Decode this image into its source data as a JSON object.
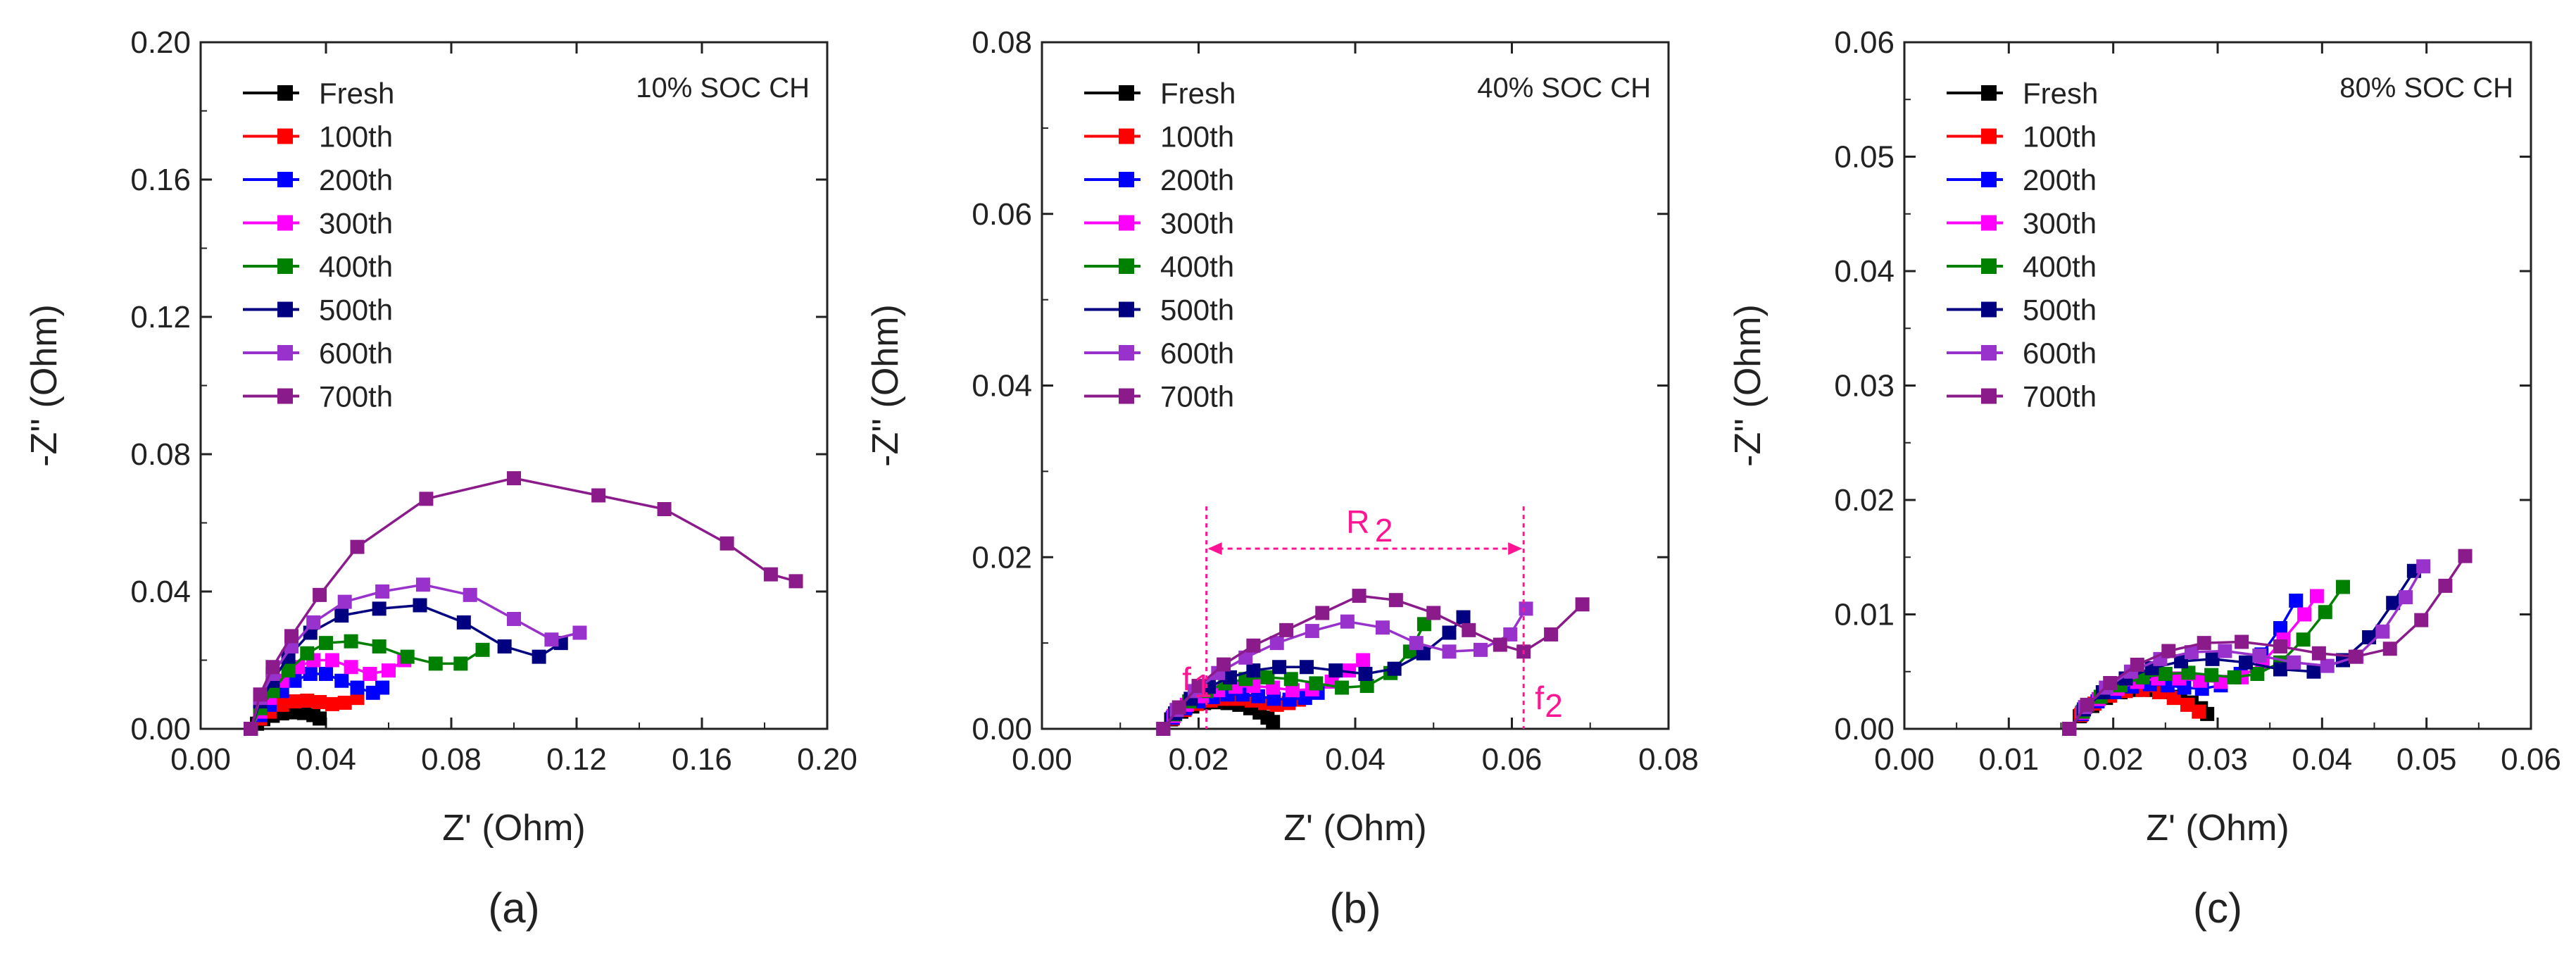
{
  "chart_data": [
    {
      "type": "line",
      "panel": "(a)",
      "annotation": "10% SOC CH",
      "xlabel": "Z' (Ohm)",
      "ylabel": "-Z'' (Ohm)",
      "xlim": [
        0,
        0.2
      ],
      "ylim": [
        0,
        0.2
      ],
      "xticks": [
        "0.00",
        "0.04",
        "0.08",
        "0.12",
        "0.16",
        "0.20"
      ],
      "yticks": [
        "0.00",
        "0.04",
        "0.08",
        "0.12",
        "0.16",
        "0.20"
      ],
      "series": [
        {
          "name": "Fresh",
          "color": "#000000",
          "x": [
            0.016,
            0.018,
            0.02,
            0.023,
            0.026,
            0.03,
            0.033,
            0.036,
            0.038
          ],
          "y": [
            0.0,
            0.0015,
            0.0028,
            0.0038,
            0.0045,
            0.0048,
            0.0046,
            0.004,
            0.003
          ]
        },
        {
          "name": "100th",
          "color": "#ff0000",
          "x": [
            0.016,
            0.019,
            0.022,
            0.026,
            0.03,
            0.034,
            0.038,
            0.042,
            0.046,
            0.05
          ],
          "y": [
            0.0,
            0.003,
            0.005,
            0.007,
            0.008,
            0.0082,
            0.0078,
            0.0072,
            0.0076,
            0.009
          ]
        },
        {
          "name": "200th",
          "color": "#0000ff",
          "x": [
            0.016,
            0.019,
            0.022,
            0.026,
            0.03,
            0.035,
            0.04,
            0.045,
            0.05,
            0.055,
            0.058
          ],
          "y": [
            0.0,
            0.004,
            0.007,
            0.011,
            0.014,
            0.016,
            0.016,
            0.014,
            0.012,
            0.0105,
            0.012
          ]
        },
        {
          "name": "300th",
          "color": "#ff00ff",
          "x": [
            0.016,
            0.019,
            0.022,
            0.026,
            0.031,
            0.036,
            0.042,
            0.048,
            0.054,
            0.06,
            0.065
          ],
          "y": [
            0.0,
            0.005,
            0.009,
            0.014,
            0.018,
            0.02,
            0.02,
            0.018,
            0.016,
            0.017,
            0.02
          ]
        },
        {
          "name": "400th",
          "color": "#008000",
          "x": [
            0.016,
            0.019,
            0.023,
            0.028,
            0.034,
            0.04,
            0.048,
            0.057,
            0.066,
            0.075,
            0.083,
            0.09
          ],
          "y": [
            0.0,
            0.006,
            0.011,
            0.017,
            0.022,
            0.025,
            0.0255,
            0.024,
            0.021,
            0.019,
            0.019,
            0.023
          ]
        },
        {
          "name": "500th",
          "color": "#000080",
          "x": [
            0.016,
            0.019,
            0.023,
            0.028,
            0.035,
            0.045,
            0.057,
            0.07,
            0.084,
            0.097,
            0.108,
            0.115
          ],
          "y": [
            0.0,
            0.008,
            0.014,
            0.021,
            0.028,
            0.033,
            0.035,
            0.036,
            0.031,
            0.024,
            0.021,
            0.025
          ]
        },
        {
          "name": "600th",
          "color": "#9932cc",
          "x": [
            0.016,
            0.019,
            0.023,
            0.029,
            0.036,
            0.046,
            0.058,
            0.071,
            0.086,
            0.1,
            0.112,
            0.121
          ],
          "y": [
            0.0,
            0.009,
            0.016,
            0.024,
            0.031,
            0.037,
            0.04,
            0.042,
            0.039,
            0.032,
            0.026,
            0.028
          ]
        },
        {
          "name": "700th",
          "color": "#8b1a8b",
          "x": [
            0.016,
            0.019,
            0.023,
            0.029,
            0.038,
            0.05,
            0.072,
            0.1,
            0.127,
            0.148,
            0.168,
            0.182,
            0.19
          ],
          "y": [
            0.0,
            0.01,
            0.018,
            0.027,
            0.039,
            0.053,
            0.067,
            0.073,
            0.068,
            0.064,
            0.054,
            0.045,
            0.043
          ]
        }
      ]
    },
    {
      "type": "line",
      "panel": "(b)",
      "annotation": "40% SOC CH",
      "xlabel": "Z' (Ohm)",
      "ylabel": "-Z'' (Ohm)",
      "xlim": [
        0,
        0.08
      ],
      "ylim": [
        0,
        0.08
      ],
      "xticks": [
        "0.00",
        "0.02",
        "0.04",
        "0.06",
        "0.08"
      ],
      "yticks": [
        "0.00",
        "0.02",
        "0.04",
        "0.06",
        "0.08"
      ],
      "series": [
        {
          "name": "Fresh",
          "color": "#000000",
          "x": [
            0.0155,
            0.0165,
            0.0178,
            0.0192,
            0.0207,
            0.0222,
            0.0237,
            0.0252,
            0.0266,
            0.0278,
            0.0288,
            0.0295
          ],
          "y": [
            0.0,
            0.0011,
            0.002,
            0.0026,
            0.003,
            0.0031,
            0.003,
            0.0028,
            0.0024,
            0.0019,
            0.0013,
            0.0008
          ]
        },
        {
          "name": "100th",
          "color": "#ff0000",
          "x": [
            0.0155,
            0.0167,
            0.0182,
            0.0198,
            0.0215,
            0.0232,
            0.025,
            0.0268,
            0.0285,
            0.03,
            0.0315,
            0.0328
          ],
          "y": [
            0.0,
            0.0012,
            0.0022,
            0.0029,
            0.0033,
            0.0035,
            0.0035,
            0.0033,
            0.003,
            0.0028,
            0.003,
            0.0034
          ]
        },
        {
          "name": "200th",
          "color": "#0000ff",
          "x": [
            0.0155,
            0.0167,
            0.0183,
            0.02,
            0.0218,
            0.0237,
            0.0256,
            0.0276,
            0.0296,
            0.0316,
            0.0336,
            0.0352
          ],
          "y": [
            0.0,
            0.0013,
            0.0024,
            0.0032,
            0.0037,
            0.004,
            0.004,
            0.0038,
            0.0035,
            0.0034,
            0.0036,
            0.0042
          ]
        },
        {
          "name": "300th",
          "color": "#ff00ff",
          "x": [
            0.0155,
            0.0168,
            0.0185,
            0.0204,
            0.0225,
            0.0247,
            0.027,
            0.0295,
            0.032,
            0.0345,
            0.037,
            0.0392,
            0.041
          ],
          "y": [
            0.0,
            0.0015,
            0.0028,
            0.0038,
            0.0045,
            0.0049,
            0.005,
            0.0048,
            0.0045,
            0.0046,
            0.0055,
            0.0068,
            0.008
          ]
        },
        {
          "name": "400th",
          "color": "#008000",
          "x": [
            0.0155,
            0.017,
            0.0188,
            0.021,
            0.0234,
            0.026,
            0.0288,
            0.0318,
            0.035,
            0.0383,
            0.0415,
            0.0445,
            0.047,
            0.0488
          ],
          "y": [
            0.0,
            0.0017,
            0.0032,
            0.0044,
            0.0053,
            0.0058,
            0.006,
            0.0058,
            0.0053,
            0.0048,
            0.005,
            0.0065,
            0.009,
            0.0122
          ]
        },
        {
          "name": "500th",
          "color": "#000080",
          "x": [
            0.0155,
            0.017,
            0.019,
            0.0213,
            0.024,
            0.027,
            0.0303,
            0.0338,
            0.0375,
            0.0413,
            0.045,
            0.0487,
            0.052,
            0.0538
          ],
          "y": [
            0.0,
            0.0018,
            0.0035,
            0.0049,
            0.006,
            0.0068,
            0.0072,
            0.0072,
            0.0068,
            0.0064,
            0.007,
            0.0088,
            0.0112,
            0.013
          ]
        },
        {
          "name": "600th",
          "color": "#9932cc",
          "x": [
            0.0155,
            0.0172,
            0.0195,
            0.0225,
            0.026,
            0.03,
            0.0345,
            0.039,
            0.0435,
            0.0478,
            0.052,
            0.056,
            0.0598,
            0.0618
          ],
          "y": [
            0.0,
            0.0022,
            0.0044,
            0.0065,
            0.0083,
            0.01,
            0.0114,
            0.0125,
            0.0118,
            0.01,
            0.009,
            0.0092,
            0.011,
            0.014
          ]
        },
        {
          "name": "700th",
          "color": "#8b1a8b",
          "x": [
            0.0155,
            0.0175,
            0.02,
            0.0232,
            0.027,
            0.0312,
            0.0358,
            0.0405,
            0.0452,
            0.05,
            0.0545,
            0.0585,
            0.0615,
            0.065,
            0.069
          ],
          "y": [
            0.0,
            0.0025,
            0.005,
            0.0075,
            0.0097,
            0.0115,
            0.0135,
            0.0155,
            0.015,
            0.0135,
            0.0115,
            0.0098,
            0.009,
            0.011,
            0.0145
          ]
        }
      ],
      "annotations": {
        "r2_label": "R",
        "r2_sub": "2",
        "f1_label": "f",
        "f1_sub": "1",
        "f2_label": "f",
        "f2_sub": "2",
        "f1_x": 0.021,
        "f2_x": 0.0615,
        "r2_y": 0.021,
        "color": "#ff1493"
      }
    },
    {
      "type": "line",
      "panel": "(c)",
      "annotation": "80% SOC CH",
      "xlabel": "Z' (Ohm)",
      "ylabel": "-Z'' (Ohm)",
      "xlim": [
        0,
        0.06
      ],
      "ylim": [
        0,
        0.06
      ],
      "xticks": [
        "0.00",
        "0.01",
        "0.02",
        "0.03",
        "0.04",
        "0.05",
        "0.06"
      ],
      "yticks": [
        "0.00",
        "0.01",
        "0.02",
        "0.03",
        "0.04",
        "0.05",
        "0.06"
      ],
      "series": [
        {
          "name": "Fresh",
          "color": "#000000",
          "x": [
            0.0158,
            0.0168,
            0.018,
            0.0193,
            0.0207,
            0.0222,
            0.0237,
            0.0251,
            0.0264,
            0.0275,
            0.0284,
            0.029
          ],
          "y": [
            0.0,
            0.0011,
            0.002,
            0.0027,
            0.0032,
            0.0034,
            0.0034,
            0.0032,
            0.0028,
            0.0023,
            0.0018,
            0.0013
          ]
        },
        {
          "name": "100th",
          "color": "#ff0000",
          "x": [
            0.0158,
            0.0169,
            0.0182,
            0.0197,
            0.0212,
            0.0228,
            0.0244,
            0.0258,
            0.0271,
            0.0282
          ],
          "y": [
            0.0,
            0.0012,
            0.0022,
            0.0029,
            0.0033,
            0.0034,
            0.0032,
            0.0027,
            0.0021,
            0.0015
          ]
        },
        {
          "name": "200th",
          "color": "#0000ff",
          "x": [
            0.0158,
            0.017,
            0.0185,
            0.0201,
            0.0218,
            0.0235,
            0.0252,
            0.0268,
            0.0285,
            0.0303,
            0.0322,
            0.0342,
            0.036,
            0.0375
          ],
          "y": [
            0.0,
            0.0013,
            0.0024,
            0.0032,
            0.0037,
            0.0039,
            0.0038,
            0.0036,
            0.0035,
            0.0038,
            0.0048,
            0.0065,
            0.0088,
            0.0112
          ]
        },
        {
          "name": "300th",
          "color": "#ff00ff",
          "x": [
            0.0158,
            0.017,
            0.0186,
            0.0204,
            0.0223,
            0.0243,
            0.0263,
            0.0283,
            0.0303,
            0.0323,
            0.0343,
            0.0363,
            0.0383,
            0.0395
          ],
          "y": [
            0.0,
            0.0014,
            0.0026,
            0.0035,
            0.0041,
            0.0044,
            0.0044,
            0.0042,
            0.0041,
            0.0045,
            0.0058,
            0.0078,
            0.01,
            0.0116
          ]
        },
        {
          "name": "400th",
          "color": "#008000",
          "x": [
            0.0158,
            0.0171,
            0.0188,
            0.0207,
            0.0228,
            0.025,
            0.0272,
            0.0294,
            0.0316,
            0.0338,
            0.036,
            0.0382,
            0.0403,
            0.042
          ],
          "y": [
            0.0,
            0.0015,
            0.0028,
            0.0038,
            0.0045,
            0.0048,
            0.0049,
            0.0047,
            0.0045,
            0.0048,
            0.0058,
            0.0078,
            0.0102,
            0.0124
          ]
        },
        {
          "name": "500th",
          "color": "#000080",
          "x": [
            0.0158,
            0.0172,
            0.019,
            0.0212,
            0.0237,
            0.0265,
            0.0295,
            0.0327,
            0.036,
            0.0392,
            0.042,
            0.0445,
            0.0468,
            0.0488
          ],
          "y": [
            0.0,
            0.0017,
            0.0032,
            0.0044,
            0.0053,
            0.0059,
            0.0061,
            0.0058,
            0.0052,
            0.005,
            0.006,
            0.008,
            0.011,
            0.0138
          ]
        },
        {
          "name": "600th",
          "color": "#9932cc",
          "x": [
            0.0158,
            0.0173,
            0.0193,
            0.0217,
            0.0245,
            0.0275,
            0.0307,
            0.034,
            0.0373,
            0.0405,
            0.0433,
            0.0458,
            0.048,
            0.0497
          ],
          "y": [
            0.0,
            0.0019,
            0.0036,
            0.005,
            0.0061,
            0.0067,
            0.0068,
            0.0064,
            0.0058,
            0.0055,
            0.0063,
            0.0085,
            0.0115,
            0.0142
          ]
        },
        {
          "name": "700th",
          "color": "#8b1a8b",
          "x": [
            0.0158,
            0.0175,
            0.0197,
            0.0223,
            0.0253,
            0.0287,
            0.0323,
            0.036,
            0.0397,
            0.0432,
            0.0465,
            0.0495,
            0.0518,
            0.0537
          ],
          "y": [
            0.0,
            0.0021,
            0.004,
            0.0056,
            0.0068,
            0.0075,
            0.0076,
            0.0072,
            0.0066,
            0.0063,
            0.007,
            0.0095,
            0.0125,
            0.0151
          ]
        }
      ]
    }
  ]
}
